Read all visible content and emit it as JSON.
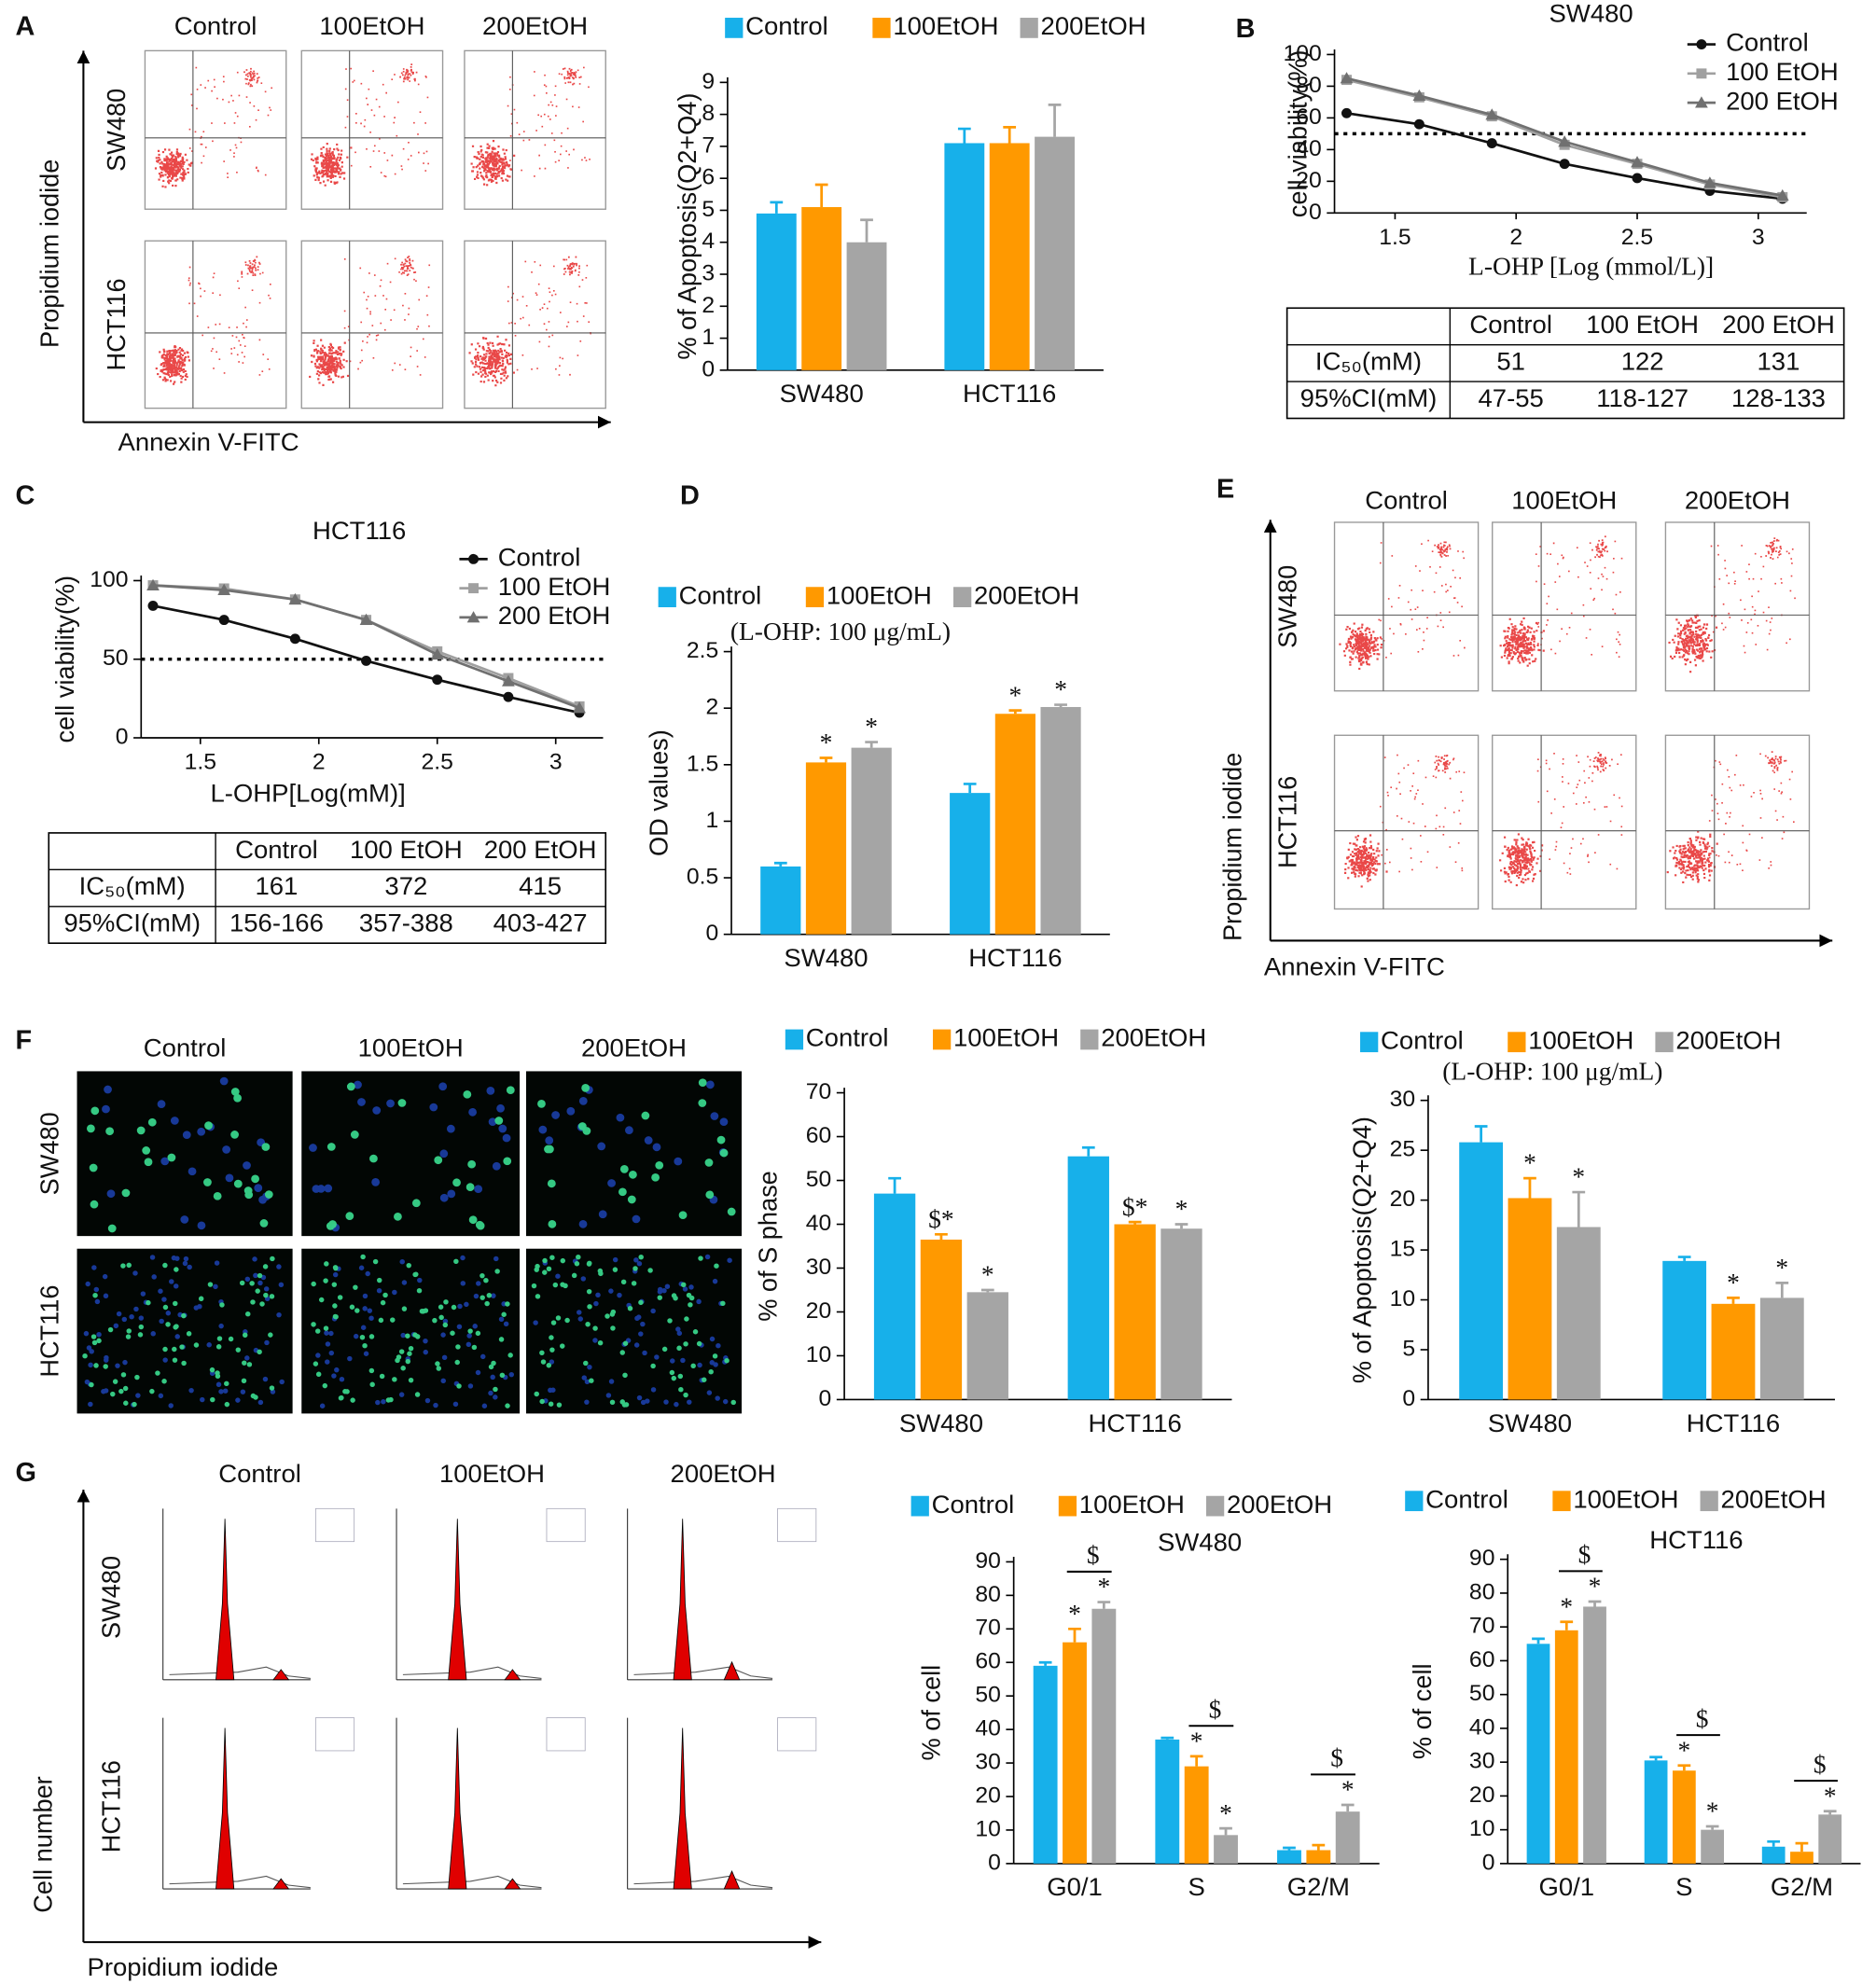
{
  "panel_labels": [
    "A",
    "B",
    "C",
    "D",
    "E",
    "F",
    "G"
  ],
  "flow_A": {
    "columns": [
      "Control",
      "100EtOH",
      "200EtOH"
    ],
    "rows": [
      "SW480",
      "HCT116"
    ],
    "y_label": "Propidium iodide",
    "x_label": "Annexin V-FITC"
  },
  "flow_E": {
    "columns": [
      "Control",
      "100EtOH",
      "200EtOH"
    ],
    "rows": [
      "SW480",
      "HCT116"
    ],
    "y_label": "Propidium iodide",
    "x_label": "Annexin V-FITC"
  },
  "images_F": {
    "columns": [
      "Control",
      "100EtOH",
      "200EtOH"
    ],
    "rows": [
      "SW480",
      "HCT116"
    ]
  },
  "cycle_G": {
    "columns": [
      "Control",
      "100EtOH",
      "200EtOH"
    ],
    "rows": [
      "SW480",
      "HCT116"
    ],
    "y_label": "Cell number",
    "x_label": "Propidium iodide"
  },
  "tables": [
    {
      "header": [
        "Control",
        "100 EtOH",
        "200 EtOH"
      ],
      "rows": [
        [
          "IC₅₀(mM)",
          51,
          122,
          131
        ],
        [
          "95%CI(mM)",
          "47-55",
          "118-127",
          "128-133"
        ]
      ]
    },
    {
      "header": [
        "Control",
        "100 EtOH",
        "200 EtOH"
      ],
      "rows": [
        [
          "IC₅₀(mM)",
          161,
          372,
          415
        ],
        [
          "95%CI(mM)",
          "156-166",
          "357-388",
          "403-427"
        ]
      ]
    }
  ],
  "chart_data": [
    {
      "type": "bar",
      "y_label": "% of Apoptosis(Q2+Q4)",
      "categories": [
        "SW480",
        "HCT116"
      ],
      "ylim": [
        0,
        9
      ],
      "yticks": [
        0,
        1,
        2,
        3,
        4,
        5,
        6,
        7,
        8,
        9
      ],
      "series": [
        {
          "name": "Control",
          "color": "#17b0ea",
          "values": [
            4.9,
            7.1
          ],
          "errors": [
            0.35,
            0.45
          ]
        },
        {
          "name": "100EtOH",
          "color": "#ff9900",
          "values": [
            5.1,
            7.1
          ],
          "errors": [
            0.7,
            0.5
          ]
        },
        {
          "name": "200EtOH",
          "color": "#a5a5a5",
          "values": [
            4.0,
            7.3
          ],
          "errors": [
            0.7,
            1.0
          ]
        }
      ]
    },
    {
      "type": "line",
      "title": "SW480",
      "x_label": "L-OHP [Log (mmol/L)]",
      "y_label": "cell viability(%)",
      "x": [
        1.3,
        1.6,
        1.9,
        2.2,
        2.5,
        2.8,
        3.1
      ],
      "xlim": [
        1.25,
        3.2
      ],
      "xticks": [
        1.5,
        2.0,
        2.5,
        3.0
      ],
      "ylim": [
        0,
        100
      ],
      "yticks": [
        0,
        20,
        40,
        60,
        80,
        100
      ],
      "reference_line": 50,
      "series": [
        {
          "name": "Control",
          "color": "#111111",
          "marker": "circle",
          "values": [
            63,
            56,
            44,
            31,
            22,
            14,
            9
          ]
        },
        {
          "name": "100 EtOH",
          "color": "#a0a0a0",
          "marker": "square",
          "values": [
            84,
            73,
            61,
            43,
            31,
            18,
            10
          ]
        },
        {
          "name": "200 EtOH",
          "color": "#707070",
          "marker": "triangle",
          "values": [
            85,
            74,
            62,
            45,
            32,
            19,
            11
          ]
        }
      ]
    },
    {
      "type": "line",
      "title": "HCT116",
      "x_label": "L-OHP[Log(mM)]",
      "y_label": "cell viability(%)",
      "x": [
        1.3,
        1.6,
        1.9,
        2.2,
        2.5,
        2.8,
        3.1
      ],
      "xlim": [
        1.25,
        3.2
      ],
      "xticks": [
        1.5,
        2.0,
        2.5,
        3.0
      ],
      "ylim": [
        0,
        100
      ],
      "yticks": [
        0,
        50,
        100
      ],
      "reference_line": 50,
      "series": [
        {
          "name": "Control",
          "color": "#111111",
          "marker": "circle",
          "values": [
            84,
            75,
            63,
            49,
            37,
            26,
            16
          ]
        },
        {
          "name": "100 EtOH",
          "color": "#a0a0a0",
          "marker": "square",
          "values": [
            97,
            95,
            88,
            75,
            55,
            38,
            20
          ]
        },
        {
          "name": "200 EtOH",
          "color": "#707070",
          "marker": "triangle",
          "values": [
            97,
            94,
            88,
            75,
            53,
            36,
            19
          ]
        }
      ]
    },
    {
      "type": "bar",
      "subtitle": "(L-OHP: 100 μg/mL)",
      "y_label": "OD values)",
      "categories": [
        "SW480",
        "HCT116"
      ],
      "ylim": [
        0,
        2.5
      ],
      "yticks": [
        0,
        0.5,
        1,
        1.5,
        2,
        2.5
      ],
      "series": [
        {
          "name": "Control",
          "color": "#17b0ea",
          "values": [
            0.6,
            1.25
          ],
          "errors": [
            0.03,
            0.08
          ]
        },
        {
          "name": "100EtOH",
          "color": "#ff9900",
          "values": [
            1.52,
            1.95
          ],
          "errors": [
            0.04,
            0.03
          ],
          "significance": [
            "*",
            "*"
          ]
        },
        {
          "name": "200EtOH",
          "color": "#a5a5a5",
          "values": [
            1.65,
            2.01
          ],
          "errors": [
            0.05,
            0.02
          ],
          "significance": [
            "*",
            "*"
          ]
        }
      ]
    },
    {
      "type": "bar",
      "y_label": "% of S phase",
      "categories": [
        "SW480",
        "HCT116"
      ],
      "ylim": [
        0,
        70
      ],
      "yticks": [
        0,
        10,
        20,
        30,
        40,
        50,
        60,
        70
      ],
      "series": [
        {
          "name": "Control",
          "color": "#17b0ea",
          "values": [
            47,
            55.5
          ],
          "errors": [
            3.5,
            2
          ]
        },
        {
          "name": "100EtOH",
          "color": "#ff9900",
          "values": [
            36.5,
            40
          ],
          "errors": [
            1.2,
            0.5
          ],
          "significance": [
            "$*",
            "$*"
          ]
        },
        {
          "name": "200EtOH",
          "color": "#a5a5a5",
          "values": [
            24.5,
            39
          ],
          "errors": [
            0.5,
            1
          ],
          "significance": [
            "*",
            "*"
          ]
        }
      ]
    },
    {
      "type": "bar",
      "subtitle": "(L-OHP: 100 μg/mL)",
      "y_label": "% of Apoptosis(Q2+Q4)",
      "categories": [
        "SW480",
        "HCT116"
      ],
      "ylim": [
        0,
        30
      ],
      "yticks": [
        0,
        5,
        10,
        15,
        20,
        25,
        30
      ],
      "series": [
        {
          "name": "Control",
          "color": "#17b0ea",
          "values": [
            25.8,
            13.9
          ],
          "errors": [
            1.6,
            0.4
          ]
        },
        {
          "name": "100EtOH",
          "color": "#ff9900",
          "values": [
            20.2,
            9.6
          ],
          "errors": [
            2,
            0.6
          ],
          "significance": [
            "*",
            "*"
          ]
        },
        {
          "name": "200EtOH",
          "color": "#a5a5a5",
          "values": [
            17.3,
            10.2
          ],
          "errors": [
            3.5,
            1.5
          ],
          "significance": [
            "*",
            "*"
          ]
        }
      ]
    },
    {
      "type": "bar",
      "title": "SW480",
      "y_label": "% of cell",
      "categories": [
        "G0/1",
        "S",
        "G2/M"
      ],
      "ylim": [
        0,
        90
      ],
      "yticks": [
        0,
        10,
        20,
        30,
        40,
        50,
        60,
        70,
        80,
        90
      ],
      "bracket_labels": [
        "$",
        "$",
        "$"
      ],
      "series": [
        {
          "name": "Control",
          "color": "#17b0ea",
          "values": [
            59,
            37,
            4
          ],
          "errors": [
            1,
            0.5,
            0.7
          ]
        },
        {
          "name": "100EtOH",
          "color": "#ff9900",
          "values": [
            66,
            29,
            4
          ],
          "errors": [
            4,
            3,
            1.5
          ],
          "significance": [
            "*",
            "*",
            null
          ]
        },
        {
          "name": "200EtOH",
          "color": "#a5a5a5",
          "values": [
            76,
            8.5,
            15.5
          ],
          "errors": [
            2,
            2,
            2
          ],
          "significance": [
            "*",
            "*",
            "*"
          ]
        }
      ]
    },
    {
      "type": "bar",
      "title": "HCT116",
      "y_label": "% of cell",
      "categories": [
        "G0/1",
        "S",
        "G2/M"
      ],
      "ylim": [
        0,
        90
      ],
      "yticks": [
        0,
        10,
        20,
        30,
        40,
        50,
        60,
        70,
        80,
        90
      ],
      "bracket_labels": [
        "$",
        "$",
        "$"
      ],
      "series": [
        {
          "name": "Control",
          "color": "#17b0ea",
          "values": [
            65,
            30.5,
            5
          ],
          "errors": [
            1.5,
            1,
            1.5
          ]
        },
        {
          "name": "100EtOH",
          "color": "#ff9900",
          "values": [
            69,
            27.5,
            3.5
          ],
          "errors": [
            2.5,
            1.5,
            2.5
          ],
          "significance": [
            "*",
            "*",
            null
          ]
        },
        {
          "name": "200EtOH",
          "color": "#a5a5a5",
          "values": [
            76,
            10,
            14.5
          ],
          "errors": [
            1.5,
            1,
            1
          ],
          "significance": [
            "*",
            "*",
            "*"
          ]
        }
      ]
    }
  ]
}
